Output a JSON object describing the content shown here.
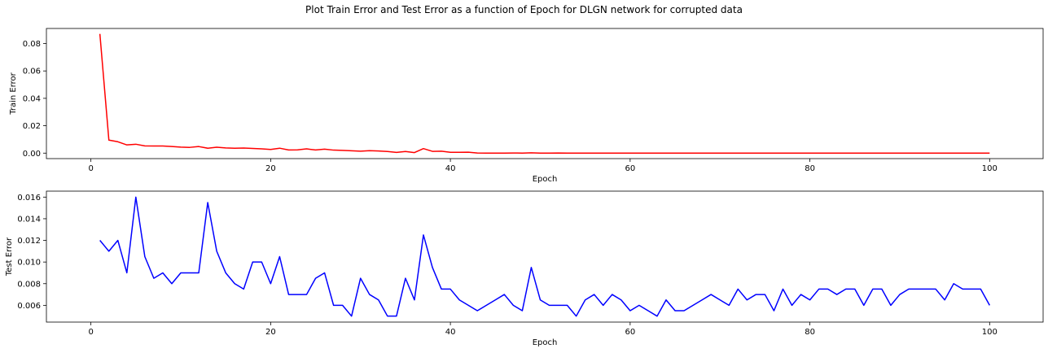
{
  "figure_title": "Plot Train Error and Test Error as a function of Epoch for DLGN network for corrupted data",
  "chart_data": [
    {
      "type": "line",
      "title": "",
      "xlabel": "Epoch",
      "ylabel": "Train Error",
      "xlim": [
        -4.95,
        105.95
      ],
      "ylim": [
        -0.004,
        0.091
      ],
      "xticks": [
        0,
        20,
        40,
        60,
        80,
        100
      ],
      "xtick_labels": [
        "0",
        "20",
        "40",
        "60",
        "80",
        "100"
      ],
      "yticks": [
        0.0,
        0.02,
        0.04,
        0.06,
        0.08
      ],
      "ytick_labels": [
        "0.00",
        "0.02",
        "0.04",
        "0.06",
        "0.08"
      ],
      "grid": false,
      "series": [
        {
          "color": "#ff0000",
          "x": [
            1,
            2,
            3,
            4,
            5,
            6,
            7,
            8,
            9,
            10,
            11,
            12,
            13,
            14,
            15,
            16,
            17,
            18,
            19,
            20,
            21,
            22,
            23,
            24,
            25,
            26,
            27,
            28,
            29,
            30,
            31,
            32,
            33,
            34,
            35,
            36,
            37,
            38,
            39,
            40,
            41,
            42,
            43,
            44,
            45,
            46,
            47,
            48,
            49,
            50,
            51,
            52,
            53,
            54,
            55,
            56,
            57,
            58,
            59,
            60,
            61,
            62,
            63,
            64,
            65,
            66,
            67,
            68,
            69,
            70,
            71,
            72,
            73,
            74,
            75,
            76,
            77,
            78,
            79,
            80,
            81,
            82,
            83,
            84,
            85,
            86,
            87,
            88,
            89,
            90,
            91,
            92,
            93,
            94,
            95,
            96,
            97,
            98,
            99,
            100
          ],
          "values": [
            0.087,
            0.0095,
            0.0083,
            0.006,
            0.0065,
            0.0053,
            0.0052,
            0.0052,
            0.0048,
            0.0044,
            0.0042,
            0.0048,
            0.0036,
            0.0043,
            0.0038,
            0.0036,
            0.0037,
            0.0034,
            0.0031,
            0.0027,
            0.0036,
            0.0023,
            0.0024,
            0.0031,
            0.0023,
            0.0029,
            0.0022,
            0.002,
            0.0017,
            0.0014,
            0.0018,
            0.0016,
            0.0012,
            0.0005,
            0.0012,
            0.0004,
            0.0033,
            0.0013,
            0.0014,
            0.0006,
            0.0006,
            0.0007,
            0.0001,
            0.0,
            0.0,
            0.0,
            0.0001,
            0.0,
            0.0002,
            0.0,
            0.0,
            0.0001,
            0.0,
            0.0,
            0.0,
            0.0,
            0.0,
            0.0,
            0.0,
            0.0,
            0.0,
            0.0,
            0.0,
            0.0,
            0.0,
            0.0,
            0.0,
            0.0,
            0.0,
            0.0,
            0.0,
            0.0,
            0.0,
            0.0,
            0.0,
            0.0,
            0.0,
            0.0,
            0.0,
            0.0,
            0.0,
            0.0,
            0.0,
            0.0,
            0.0,
            0.0,
            0.0,
            0.0,
            0.0,
            0.0,
            0.0,
            0.0,
            0.0,
            0.0,
            0.0,
            0.0,
            0.0,
            0.0,
            0.0,
            0.0
          ]
        }
      ]
    },
    {
      "type": "line",
      "title": "",
      "xlabel": "Epoch",
      "ylabel": "Test Error",
      "xlim": [
        -4.95,
        105.95
      ],
      "ylim": [
        0.00445,
        0.01655
      ],
      "xticks": [
        0,
        20,
        40,
        60,
        80,
        100
      ],
      "xtick_labels": [
        "0",
        "20",
        "40",
        "60",
        "80",
        "100"
      ],
      "yticks": [
        0.006,
        0.008,
        0.01,
        0.012,
        0.014,
        0.016
      ],
      "ytick_labels": [
        "0.006",
        "0.008",
        "0.010",
        "0.012",
        "0.014",
        "0.016"
      ],
      "grid": false,
      "series": [
        {
          "color": "#0000ff",
          "x": [
            1,
            2,
            3,
            4,
            5,
            6,
            7,
            8,
            9,
            10,
            11,
            12,
            13,
            14,
            15,
            16,
            17,
            18,
            19,
            20,
            21,
            22,
            23,
            24,
            25,
            26,
            27,
            28,
            29,
            30,
            31,
            32,
            33,
            34,
            35,
            36,
            37,
            38,
            39,
            40,
            41,
            42,
            43,
            44,
            45,
            46,
            47,
            48,
            49,
            50,
            51,
            52,
            53,
            54,
            55,
            56,
            57,
            58,
            59,
            60,
            61,
            62,
            63,
            64,
            65,
            66,
            67,
            68,
            69,
            70,
            71,
            72,
            73,
            74,
            75,
            76,
            77,
            78,
            79,
            80,
            81,
            82,
            83,
            84,
            85,
            86,
            87,
            88,
            89,
            90,
            91,
            92,
            93,
            94,
            95,
            96,
            97,
            98,
            99,
            100
          ],
          "values": [
            0.012,
            0.011,
            0.012,
            0.009,
            0.016,
            0.0105,
            0.0085,
            0.009,
            0.008,
            0.009,
            0.009,
            0.009,
            0.0155,
            0.011,
            0.009,
            0.008,
            0.0075,
            0.01,
            0.01,
            0.008,
            0.0105,
            0.007,
            0.007,
            0.007,
            0.0085,
            0.009,
            0.006,
            0.006,
            0.005,
            0.0085,
            0.007,
            0.0065,
            0.005,
            0.005,
            0.0085,
            0.0065,
            0.0125,
            0.0095,
            0.0075,
            0.0075,
            0.0065,
            0.006,
            0.0055,
            0.006,
            0.0065,
            0.007,
            0.006,
            0.0055,
            0.0095,
            0.0065,
            0.006,
            0.006,
            0.006,
            0.005,
            0.0065,
            0.007,
            0.006,
            0.007,
            0.0065,
            0.0055,
            0.006,
            0.0055,
            0.005,
            0.0065,
            0.0055,
            0.0055,
            0.006,
            0.0065,
            0.007,
            0.0065,
            0.006,
            0.0075,
            0.0065,
            0.007,
            0.007,
            0.0055,
            0.0075,
            0.006,
            0.007,
            0.0065,
            0.0075,
            0.0075,
            0.007,
            0.0075,
            0.0075,
            0.006,
            0.0075,
            0.0075,
            0.006,
            0.007,
            0.0075,
            0.0075,
            0.0075,
            0.0075,
            0.0065,
            0.008,
            0.0075,
            0.0075,
            0.0075,
            0.006
          ]
        }
      ]
    }
  ]
}
